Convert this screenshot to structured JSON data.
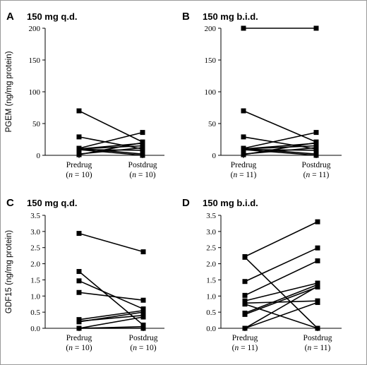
{
  "chart_data": [
    {
      "type": "line",
      "panel_label": "A",
      "title": "150 mg q.d.",
      "ylabel": "PGEM (ng/mg protein)",
      "ylim": [
        0,
        200
      ],
      "yticks": [
        "0",
        "50",
        "100",
        "150",
        "200"
      ],
      "categories": [
        "Predrug",
        "Postdrug"
      ],
      "n_labels": [
        [
          "(",
          "n",
          " = 10)"
        ],
        [
          "(",
          "n",
          " = 10)"
        ]
      ],
      "pairs": [
        [
          70,
          21
        ],
        [
          29,
          10
        ],
        [
          11,
          36
        ],
        [
          11,
          2
        ],
        [
          10,
          15
        ],
        [
          10,
          19
        ],
        [
          9,
          0
        ],
        [
          9,
          8
        ],
        [
          2,
          12
        ],
        [
          1,
          20
        ]
      ]
    },
    {
      "type": "line",
      "panel_label": "B",
      "title": "150 mg b.i.d.",
      "ylabel": "",
      "ylim": [
        0,
        200
      ],
      "yticks": [
        "0",
        "50",
        "100",
        "150",
        "200"
      ],
      "categories": [
        "Predrug",
        "Postdrug"
      ],
      "n_labels": [
        [
          "(",
          "n",
          " = 11)"
        ],
        [
          "(",
          "n",
          " = 11)"
        ]
      ],
      "pairs": [
        [
          200,
          200
        ],
        [
          70,
          21
        ],
        [
          29,
          10
        ],
        [
          11,
          36
        ],
        [
          11,
          2
        ],
        [
          10,
          15
        ],
        [
          10,
          19
        ],
        [
          9,
          0
        ],
        [
          9,
          8
        ],
        [
          2,
          12
        ],
        [
          1,
          20
        ]
      ]
    },
    {
      "type": "line",
      "panel_label": "C",
      "title": "150 mg q.d.",
      "ylabel": "GDF15 (ng/mg protein)",
      "ylim": [
        0,
        3.5
      ],
      "yticks": [
        "0.0",
        "0.5",
        "1.0",
        "1.5",
        "2.0",
        "2.5",
        "3.0",
        "3.5"
      ],
      "categories": [
        "Predrug",
        "Postdrug"
      ],
      "n_labels": [
        [
          "(",
          "n",
          " = 10)"
        ],
        [
          "(",
          "n",
          " = 10)"
        ]
      ],
      "pairs": [
        [
          2.94,
          2.37
        ],
        [
          1.76,
          0.1
        ],
        [
          1.47,
          0.6
        ],
        [
          1.11,
          0.87
        ],
        [
          0.27,
          0.55
        ],
        [
          0.22,
          0.4
        ],
        [
          0.2,
          0.5
        ],
        [
          0.0,
          0.05
        ],
        [
          0.0,
          0.35
        ],
        [
          0.0,
          0.0
        ]
      ]
    },
    {
      "type": "line",
      "panel_label": "D",
      "title": "150 mg b.i.d.",
      "ylabel": "",
      "ylim": [
        0,
        3.5
      ],
      "yticks": [
        "0.0",
        "0.5",
        "1.0",
        "1.5",
        "2.0",
        "2.5",
        "3.0",
        "3.5"
      ],
      "categories": [
        "Predrug",
        "Postdrug"
      ],
      "n_labels": [
        [
          "(",
          "n",
          " = 11)"
        ],
        [
          "(",
          "n",
          " = 11)"
        ]
      ],
      "pairs": [
        [
          2.22,
          3.3
        ],
        [
          2.2,
          0.0
        ],
        [
          1.45,
          2.49
        ],
        [
          1.02,
          2.09
        ],
        [
          0.85,
          1.4
        ],
        [
          0.78,
          0.85
        ],
        [
          0.75,
          0.0
        ],
        [
          0.47,
          1.35
        ],
        [
          0.43,
          1.28
        ],
        [
          0.0,
          0.8
        ],
        [
          0.0,
          1.3
        ]
      ]
    }
  ]
}
